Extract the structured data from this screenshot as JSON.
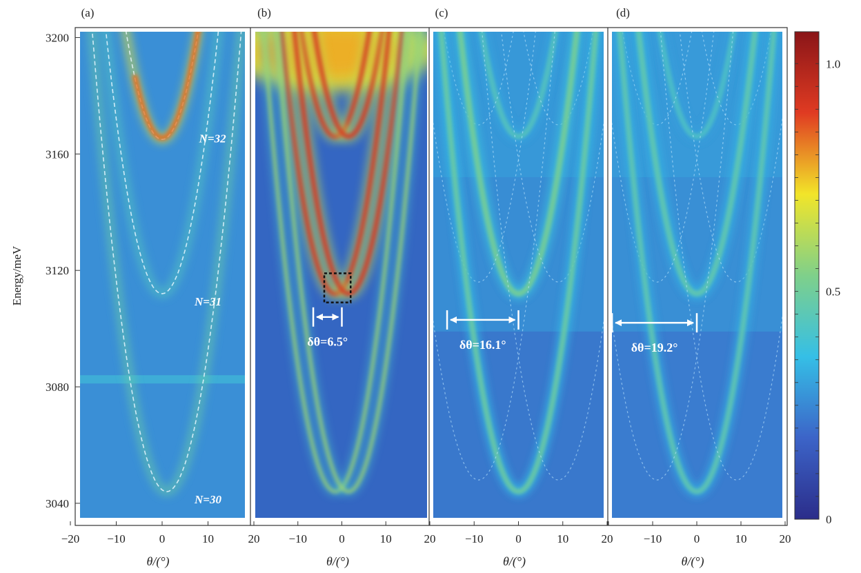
{
  "chart_data": {
    "type": "heatmap",
    "shared_axes": {
      "ylabel": "Energy/meV",
      "xlabel": "θ/(°)",
      "ylim": [
        3035,
        3202
      ],
      "xlim": [
        -20,
        20
      ],
      "yticks": [
        3040,
        3080,
        3120,
        3160,
        3200
      ],
      "xticks": [
        -20,
        -10,
        0,
        10,
        20
      ]
    },
    "colorbar": {
      "range": [
        0,
        1.07
      ],
      "ticks": [
        {
          "value": 0,
          "label": "0"
        },
        {
          "value": 0.5,
          "label": "0.5"
        },
        {
          "value": 1.0,
          "label": "1.0"
        }
      ],
      "colors": [
        "#2b2d8a",
        "#3c64c8",
        "#35bfe6",
        "#7fd08a",
        "#f2e529",
        "#e03b22",
        "#8a1518"
      ]
    },
    "panels": [
      {
        "label": "(a)",
        "modes": [
          {
            "label": "N=32",
            "vertex_x": 0,
            "vertex_y": 3165,
            "curvature": 0.075,
            "peak": 0.72
          },
          {
            "label": "N=31",
            "vertex_x": 0,
            "vertex_y": 3112,
            "curvature": 0.075,
            "peak": 0.45
          },
          {
            "label": "N=30",
            "vertex_x": 1,
            "vertex_y": 3044,
            "curvature": 0.075,
            "peak": 0.5
          }
        ],
        "mode_labels": [
          {
            "text": "N=32",
            "x": 11,
            "y": 3164
          },
          {
            "text": "N=31",
            "x": 10,
            "y": 3108
          },
          {
            "text": "N=30",
            "x": 10,
            "y": 3040
          }
        ]
      },
      {
        "label": "(b)",
        "delta_theta": {
          "text": "δθ=6.5°",
          "from": -6.5,
          "to": 0,
          "y": 3104
        },
        "box": {
          "x0": -4,
          "x1": 2,
          "y0": 3109,
          "y1": 3119
        }
      },
      {
        "label": "(c)",
        "delta_theta": {
          "text": "δθ=16.1°",
          "from": -16.1,
          "to": 0,
          "y": 3103
        }
      },
      {
        "label": "(d)",
        "delta_theta": {
          "text": "δθ=19.2°",
          "from": -19.2,
          "to": 0,
          "y": 3102
        }
      }
    ]
  }
}
